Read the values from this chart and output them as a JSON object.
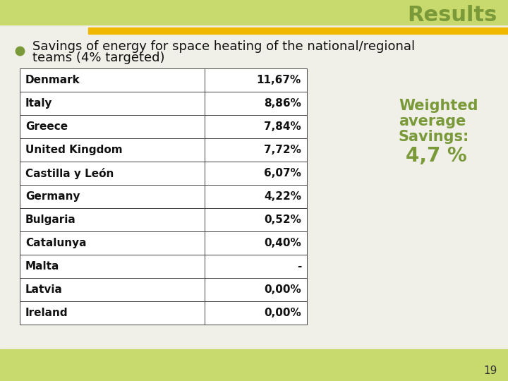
{
  "title": "Results",
  "bullet_text_line1": "Savings of energy for space heating of the national/regional",
  "bullet_text_line2": "teams (4% targeted)",
  "table_countries": [
    "Denmark",
    "Italy",
    "Greece",
    "United Kingdom",
    "Castilla y León",
    "Germany",
    "Bulgaria",
    "Catalunya",
    "Malta",
    "Latvia",
    "Ireland"
  ],
  "table_values": [
    "11,67%",
    "8,86%",
    "7,84%",
    "7,72%",
    "6,07%",
    "4,22%",
    "0,52%",
    "0,40%",
    "-",
    "0,00%",
    "0,00%"
  ],
  "weighted_avg_line1": "Weighted",
  "weighted_avg_line2": "average",
  "weighted_avg_line3": "Savings:",
  "weighted_avg_line4": "4,7 %",
  "weighted_avg_color": "#7a9a3a",
  "header_bg_color": "#c8d96e",
  "title_color": "#7a9a3a",
  "slide_bg_color": "#f0f0e8",
  "table_border_color": "#444444",
  "bullet_color": "#7a9a3a",
  "gold_bar_color": "#f0b800",
  "page_number": "19",
  "font_size_title": 22,
  "font_size_bullet": 13,
  "font_size_table": 11,
  "font_size_weighted_small": 15,
  "font_size_weighted_large": 20
}
